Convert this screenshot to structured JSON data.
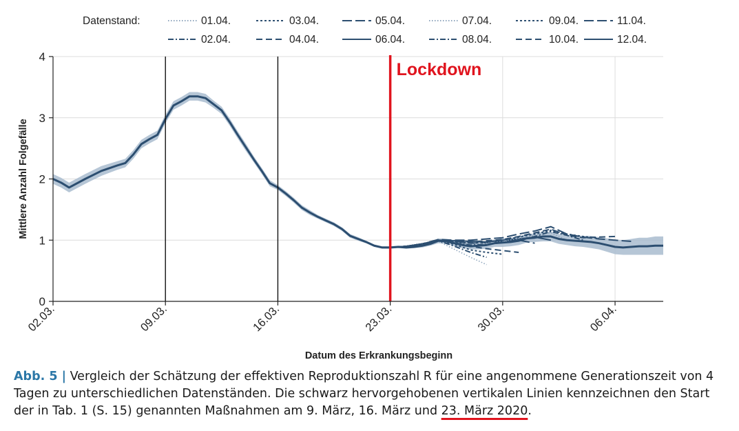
{
  "chart_data": {
    "type": "line",
    "ylabel": "Mittlere Anzahl Folgefälle",
    "xlabel": "Datum des Erkrankungsbeginn",
    "ylim": [
      0,
      4
    ],
    "yticks": [
      "0",
      "1",
      "2",
      "3",
      "4"
    ],
    "xticks": [
      {
        "label": "02.03.",
        "day": 2
      },
      {
        "label": "09.03.",
        "day": 9
      },
      {
        "label": "16.03.",
        "day": 16
      },
      {
        "label": "23.03.",
        "day": 23
      },
      {
        "label": "30.03.",
        "day": 30
      },
      {
        "label": "06.04.",
        "day": 37
      }
    ],
    "xlim_days": [
      2,
      40
    ],
    "legend": {
      "title": "Datenstand:",
      "placement": "top",
      "entries": [
        {
          "label": "01.04.",
          "dash": "dot-fine"
        },
        {
          "label": "02.04.",
          "dash": "dashdot"
        },
        {
          "label": "03.04.",
          "dash": "dot"
        },
        {
          "label": "04.04.",
          "dash": "dash"
        },
        {
          "label": "05.04.",
          "dash": "longdash"
        },
        {
          "label": "06.04.",
          "dash": "solid"
        },
        {
          "label": "07.04.",
          "dash": "dot-fine"
        },
        {
          "label": "08.04.",
          "dash": "dashdot"
        },
        {
          "label": "09.04.",
          "dash": "dot"
        },
        {
          "label": "10.04.",
          "dash": "dash"
        },
        {
          "label": "11.04.",
          "dash": "longdash"
        },
        {
          "label": "12.04.",
          "dash": "solid"
        }
      ]
    },
    "interventions": [
      {
        "day": 9,
        "label": "09.03."
      },
      {
        "day": 16,
        "label": "16.03."
      },
      {
        "day": 23,
        "label": "Lockdown"
      }
    ],
    "main_series": {
      "name": "12.04.",
      "x": [
        2,
        2.5,
        3,
        4,
        5,
        6,
        6.5,
        7,
        7.5,
        8,
        8.5,
        9,
        9.5,
        10,
        10.5,
        11,
        11.5,
        12,
        12.5,
        13,
        13.5,
        14,
        14.5,
        15,
        15.5,
        16,
        16.5,
        17,
        17.5,
        18,
        18.5,
        19,
        19.5,
        20,
        20.5,
        21,
        21.5,
        22,
        22.5,
        23,
        23.5,
        24,
        24.5,
        25,
        25.5,
        26,
        26.5,
        27,
        27.5,
        28,
        28.5,
        29,
        29.5,
        30,
        30.5,
        31,
        31.5,
        32,
        32.5,
        33,
        33.5,
        34,
        34.5,
        35,
        35.5,
        36,
        36.5,
        37,
        37.5,
        38,
        38.5,
        39,
        39.5,
        40
      ],
      "values": [
        2.0,
        1.94,
        1.86,
        2.0,
        2.13,
        2.22,
        2.26,
        2.4,
        2.57,
        2.65,
        2.72,
        2.98,
        3.2,
        3.27,
        3.35,
        3.35,
        3.32,
        3.22,
        3.12,
        2.93,
        2.72,
        2.52,
        2.32,
        2.13,
        1.93,
        1.86,
        1.76,
        1.65,
        1.53,
        1.45,
        1.38,
        1.32,
        1.26,
        1.18,
        1.07,
        1.02,
        0.97,
        0.91,
        0.88,
        0.88,
        0.89,
        0.88,
        0.89,
        0.91,
        0.94,
        0.99,
        0.98,
        0.95,
        0.92,
        0.9,
        0.91,
        0.92,
        0.95,
        0.96,
        0.97,
        0.99,
        1.03,
        1.04,
        1.06,
        1.06,
        1.02,
        1.0,
        0.99,
        0.98,
        0.97,
        0.95,
        0.92,
        0.89,
        0.88,
        0.89,
        0.9,
        0.9,
        0.91,
        0.91
      ],
      "band_halfwidth": [
        0.08,
        0.08,
        0.08,
        0.08,
        0.08,
        0.07,
        0.07,
        0.07,
        0.07,
        0.07,
        0.07,
        0.07,
        0.07,
        0.07,
        0.07,
        0.07,
        0.07,
        0.06,
        0.06,
        0.06,
        0.06,
        0.06,
        0.05,
        0.05,
        0.05,
        0.04,
        0.04,
        0.04,
        0.04,
        0.04,
        0.03,
        0.03,
        0.03,
        0.03,
        0.03,
        0.03,
        0.02,
        0.02,
        0.02,
        0.02,
        0.02,
        0.02,
        0.02,
        0.03,
        0.03,
        0.04,
        0.04,
        0.05,
        0.05,
        0.05,
        0.06,
        0.06,
        0.06,
        0.07,
        0.07,
        0.07,
        0.07,
        0.07,
        0.08,
        0.08,
        0.08,
        0.08,
        0.09,
        0.09,
        0.1,
        0.1,
        0.11,
        0.12,
        0.12,
        0.13,
        0.14,
        0.14,
        0.15,
        0.15
      ]
    },
    "vintage_series": [
      {
        "name": "01.04.",
        "dash": "dot-fine",
        "x": [
          23,
          24,
          25,
          25.5,
          26,
          27,
          28,
          29
        ],
        "values": [
          0.88,
          0.88,
          0.92,
          0.96,
          0.98,
          0.85,
          0.72,
          0.6
        ]
      },
      {
        "name": "02.04.",
        "dash": "dashdot",
        "x": [
          23,
          24,
          25,
          26,
          27,
          28,
          29
        ],
        "values": [
          0.88,
          0.89,
          0.93,
          0.99,
          0.9,
          0.8,
          0.72
        ]
      },
      {
        "name": "03.04.",
        "dash": "dot",
        "x": [
          23,
          24,
          25,
          26,
          27,
          28,
          29,
          30
        ],
        "values": [
          0.88,
          0.9,
          0.94,
          1.0,
          0.93,
          0.84,
          0.8,
          0.77
        ]
      },
      {
        "name": "04.04.",
        "dash": "dash",
        "x": [
          23,
          24,
          25,
          26,
          27,
          28,
          29,
          30,
          31
        ],
        "values": [
          0.88,
          0.9,
          0.94,
          1.0,
          0.96,
          0.9,
          0.86,
          0.83,
          0.8
        ]
      },
      {
        "name": "05.04.",
        "dash": "longdash",
        "x": [
          23,
          24,
          25,
          26,
          27,
          28,
          29,
          30,
          31,
          32
        ],
        "values": [
          0.88,
          0.9,
          0.94,
          1.01,
          0.98,
          0.95,
          0.96,
          0.98,
          1.0,
          0.95
        ]
      },
      {
        "name": "06.04.",
        "dash": "solid",
        "x": [
          23,
          24,
          25,
          26,
          27,
          28,
          29,
          30,
          31,
          32,
          33
        ],
        "values": [
          0.88,
          0.9,
          0.94,
          1.0,
          0.99,
          0.98,
          0.97,
          1.0,
          1.02,
          1.05,
          1.0
        ]
      },
      {
        "name": "07.04.",
        "dash": "dot-fine",
        "x": [
          23,
          24,
          25,
          26,
          27,
          28,
          29,
          30,
          31,
          32,
          33,
          34
        ],
        "values": [
          0.88,
          0.9,
          0.94,
          1.0,
          0.96,
          0.94,
          0.95,
          0.98,
          1.03,
          1.08,
          1.12,
          1.0
        ]
      },
      {
        "name": "08.04.",
        "dash": "dashdot",
        "x": [
          23,
          24,
          25,
          26,
          27,
          28,
          29,
          30,
          31,
          32,
          33,
          34,
          35
        ],
        "values": [
          0.88,
          0.9,
          0.94,
          1.0,
          0.95,
          0.92,
          0.93,
          0.96,
          1.0,
          1.06,
          1.14,
          1.08,
          1.0
        ]
      },
      {
        "name": "09.04.",
        "dash": "dot",
        "x": [
          23,
          24,
          25,
          26,
          27,
          28,
          29,
          30,
          31,
          32,
          33,
          34,
          35,
          36
        ],
        "values": [
          0.88,
          0.9,
          0.94,
          1.0,
          0.97,
          0.95,
          0.97,
          1.0,
          1.05,
          1.1,
          1.16,
          1.1,
          1.06,
          1.03
        ]
      },
      {
        "name": "10.04.",
        "dash": "dash",
        "x": [
          23,
          24,
          25,
          26,
          27,
          28,
          29,
          30,
          31,
          32,
          33,
          34,
          35,
          36,
          37
        ],
        "values": [
          0.88,
          0.9,
          0.94,
          1.0,
          0.98,
          0.97,
          0.99,
          1.01,
          1.06,
          1.12,
          1.18,
          1.08,
          1.04,
          1.05,
          1.06
        ]
      },
      {
        "name": "11.04.",
        "dash": "longdash",
        "x": [
          23,
          24,
          25,
          26,
          27,
          28,
          29,
          30,
          31,
          32,
          33,
          34,
          35,
          36,
          37,
          38
        ],
        "values": [
          0.88,
          0.9,
          0.94,
          1.01,
          1.0,
          1.0,
          1.02,
          1.04,
          1.1,
          1.15,
          1.22,
          1.1,
          1.05,
          1.02,
          1.0,
          0.98
        ]
      }
    ]
  },
  "caption": {
    "label": "Abb. 5 |",
    "text_before": " Vergleich der Schätzung der effektiven Reproduktionszahl R für eine angenommene Generationszeit von 4 Tagen zu unterschiedlichen Datenständen. Die schwarz hervorgehobenen vertikalen Linien kennzeichnen den Start der in Tab. 1 (S. 15) genannten Maßnahmen am 9. März, 16. März und ",
    "underlined": "23. März 2020",
    "text_after": "."
  },
  "colors": {
    "line": "#2c4e70",
    "band": "#a9bccf",
    "grid": "#dcdcdc",
    "intervention": "#111111",
    "lockdown": "#e0141e",
    "caption_label": "#2b77a7"
  }
}
